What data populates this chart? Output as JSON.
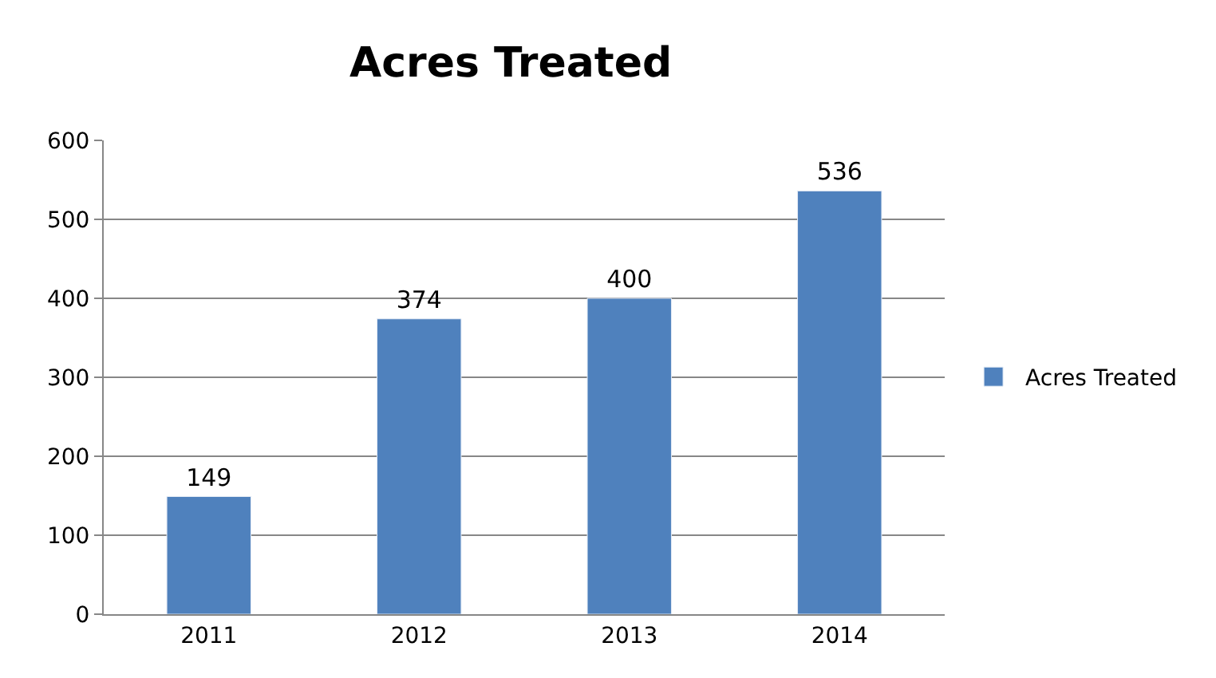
{
  "chart_data": {
    "type": "bar",
    "title": "Acres Treated",
    "categories": [
      "2011",
      "2012",
      "2013",
      "2014"
    ],
    "series": [
      {
        "name": "Acres Treated",
        "color": "#4f81bd",
        "values": [
          149,
          374,
          400,
          536
        ]
      }
    ],
    "ylim": [
      0,
      600
    ],
    "yticks": [
      0,
      100,
      200,
      300,
      400,
      500,
      600
    ],
    "grid": "y",
    "legend": "right",
    "data_labels": true
  }
}
